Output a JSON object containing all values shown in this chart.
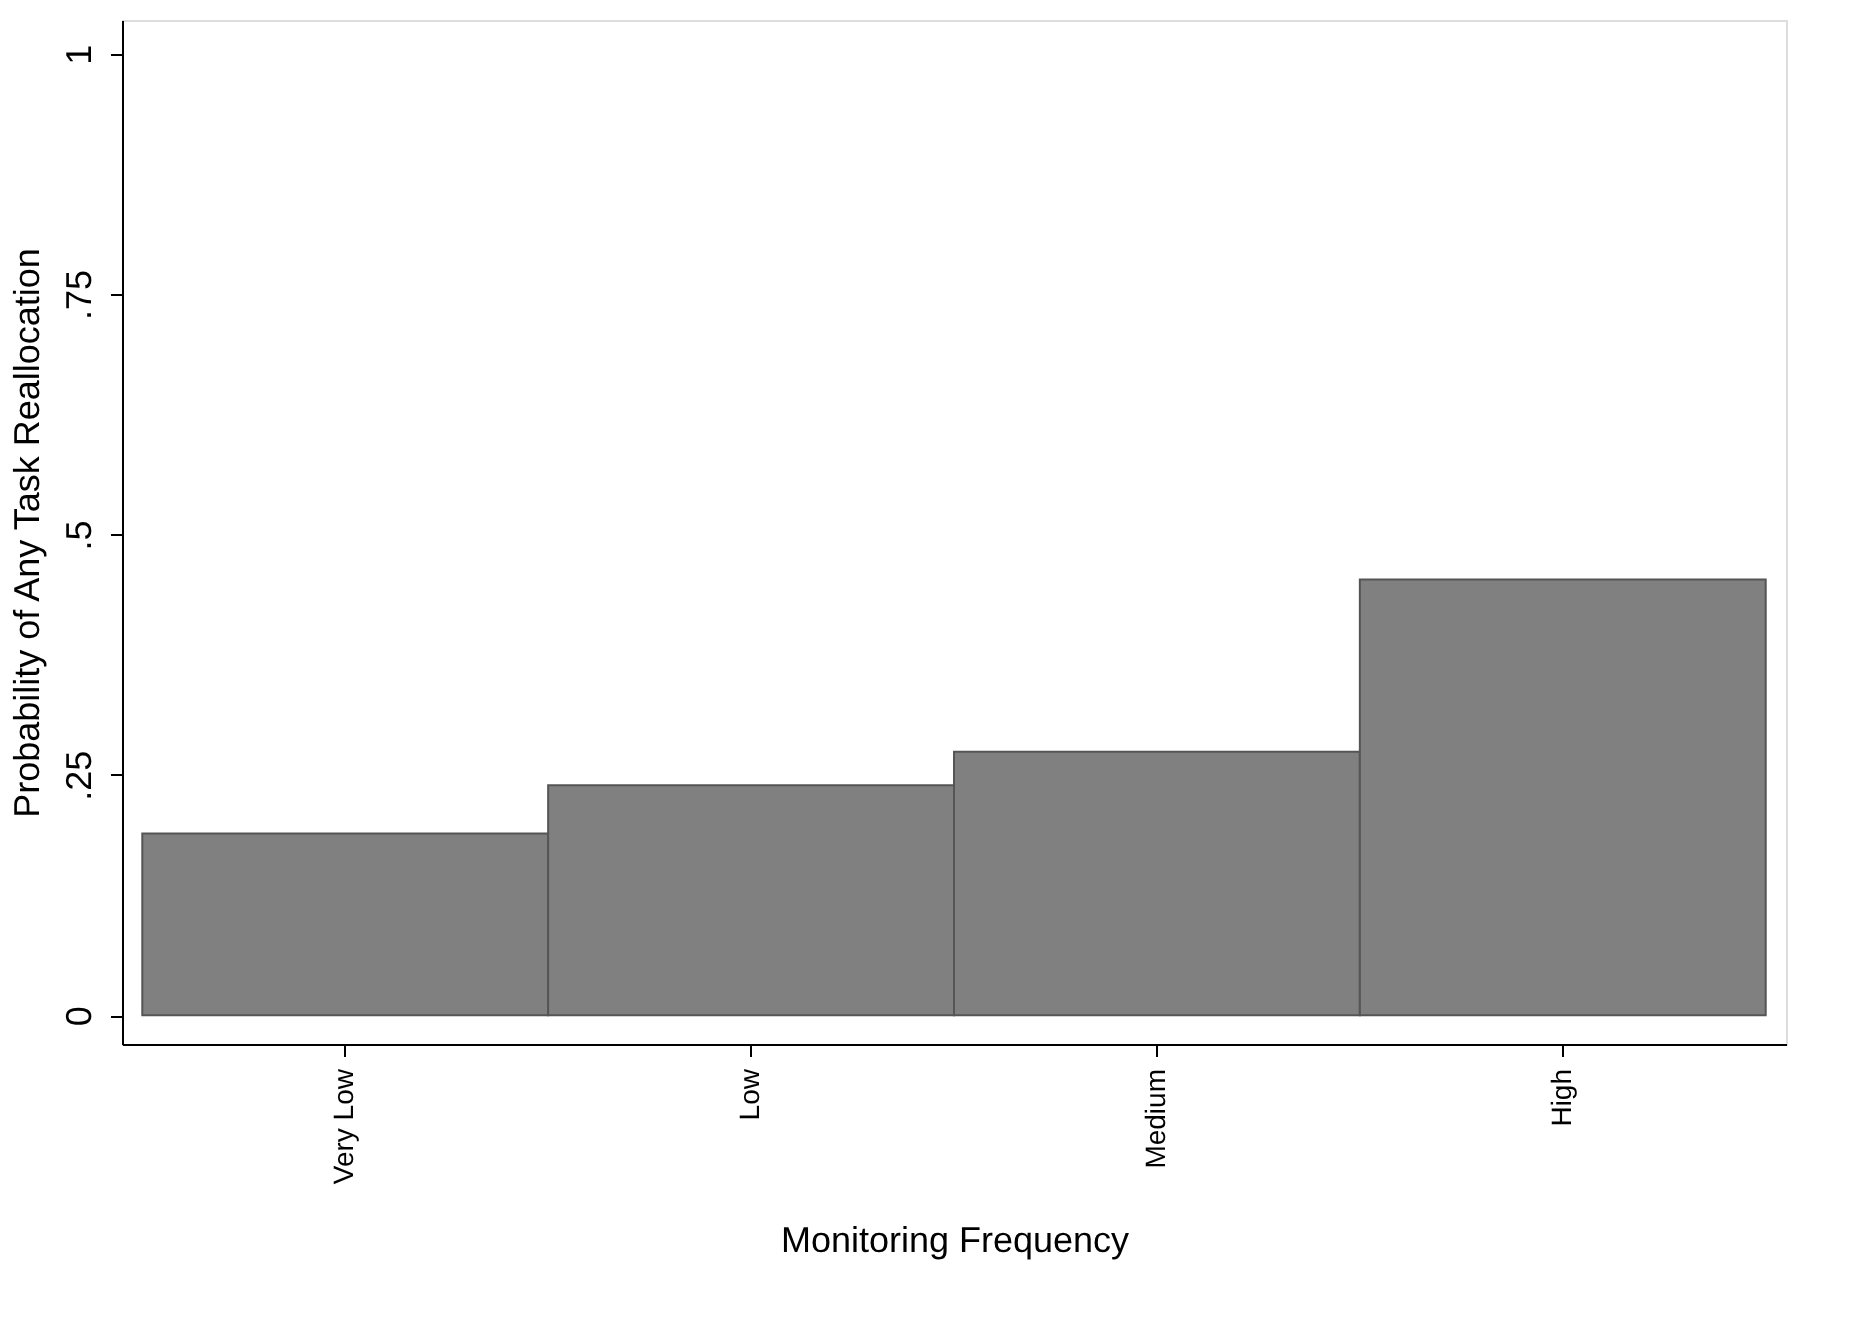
{
  "chart_data": {
    "type": "bar",
    "xlabel": "Monitoring Frequency",
    "ylabel": "Probability of Any Task Reallocation",
    "categories": [
      "Very Low",
      "Low",
      "Medium",
      "High"
    ],
    "values": [
      0.189,
      0.239,
      0.274,
      0.453
    ],
    "color": "#808080",
    "ylim": [
      -0.03,
      1.035
    ],
    "yticks": [
      0,
      {
        "value": 0.25,
        "label": ".25"
      },
      {
        "value": 0.5,
        "label": ".5"
      },
      {
        "value": 0.75,
        "label": ".75"
      },
      1
    ],
    "grid": false
  }
}
